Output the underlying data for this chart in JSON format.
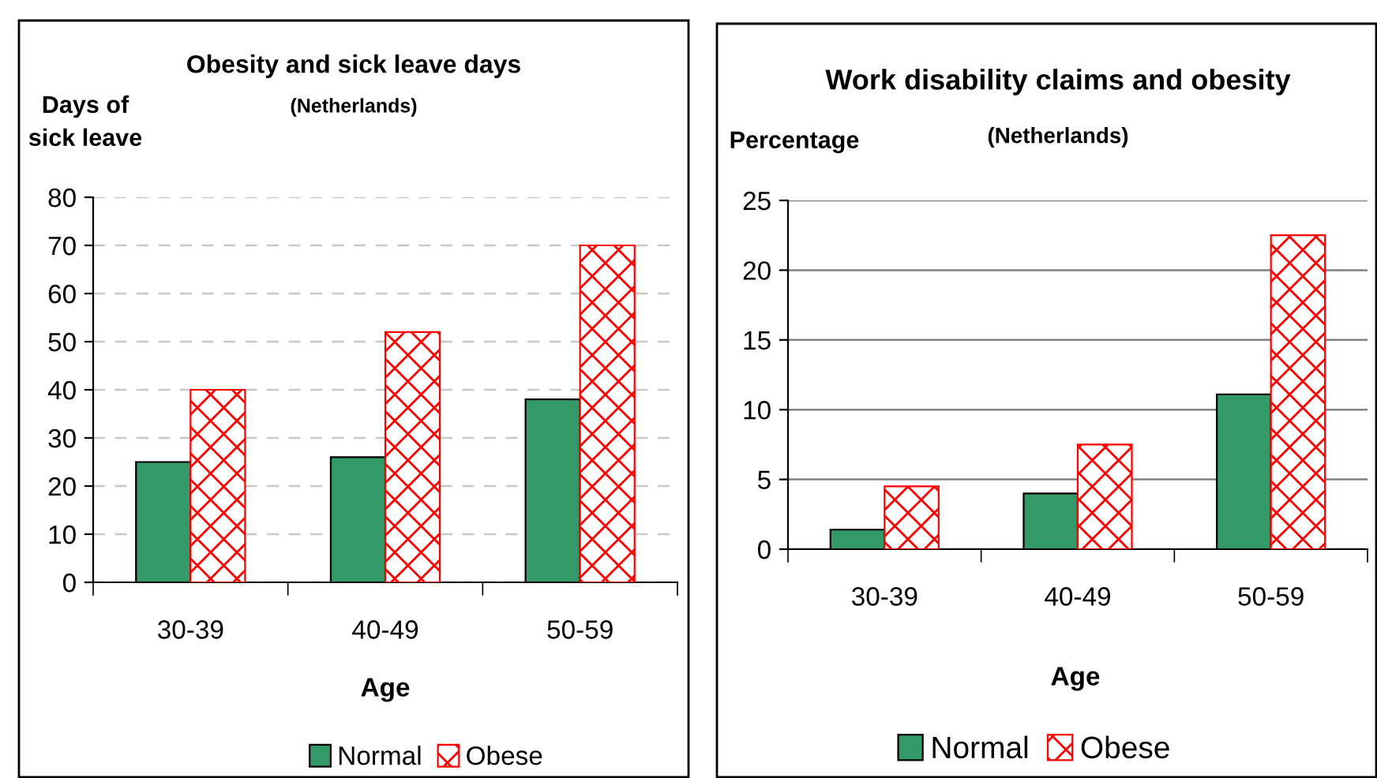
{
  "chart_data": [
    {
      "type": "bar",
      "title": "Obesity and sick leave days",
      "subtitle": "(Netherlands)",
      "ylabel": "Days of\nsick leave",
      "xlabel": "Age",
      "categories": [
        "30-39",
        "40-49",
        "50-59"
      ],
      "series": [
        {
          "name": "Normal",
          "color": "#339966",
          "values": [
            25,
            26,
            38
          ]
        },
        {
          "name": "Obese",
          "color": "#ff0000",
          "values": [
            40,
            52,
            70
          ]
        }
      ],
      "ylim": [
        0,
        80
      ],
      "yticks": [
        0,
        10,
        20,
        30,
        40,
        50,
        60,
        70,
        80
      ],
      "grid": "y",
      "legend": "bottom"
    },
    {
      "type": "bar",
      "title": "Work disability claims and obesity",
      "subtitle": "(Netherlands)",
      "ylabel": "Percentage",
      "xlabel": "Age",
      "categories": [
        "30-39",
        "40-49",
        "50-59"
      ],
      "series": [
        {
          "name": "Normal",
          "color": "#339966",
          "values": [
            1.4,
            4.0,
            11.1
          ]
        },
        {
          "name": "Obese",
          "color": "#ff0000",
          "values": [
            4.5,
            7.5,
            22.5
          ]
        }
      ],
      "ylim": [
        0,
        25
      ],
      "yticks": [
        0,
        5,
        10,
        15,
        20,
        25
      ],
      "grid": "y",
      "legend": "bottom"
    }
  ]
}
